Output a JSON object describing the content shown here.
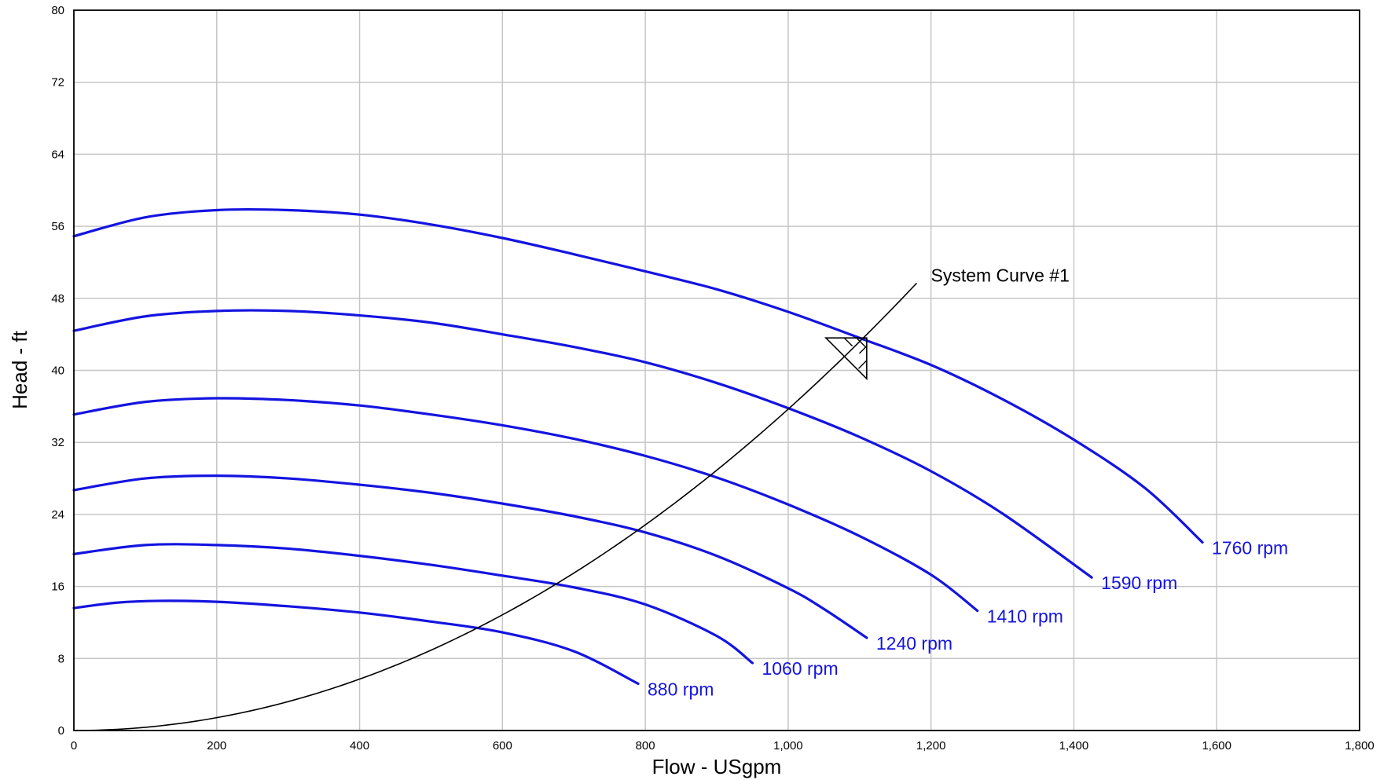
{
  "chart_data": {
    "type": "line",
    "title": "",
    "xlabel": "Flow - USgpm",
    "ylabel": "Head - ft",
    "xlim": [
      0,
      1800
    ],
    "ylim": [
      0,
      80
    ],
    "grid": true,
    "x_ticks": [
      {
        "value": 0,
        "label": "0"
      },
      {
        "value": 200,
        "label": "200"
      },
      {
        "value": 400,
        "label": "400"
      },
      {
        "value": 600,
        "label": "600"
      },
      {
        "value": 800,
        "label": "800"
      },
      {
        "value": 1000,
        "label": "1,000"
      },
      {
        "value": 1200,
        "label": "1,200"
      },
      {
        "value": 1400,
        "label": "1,400"
      },
      {
        "value": 1600,
        "label": "1,600"
      },
      {
        "value": 1800,
        "label": "1,800"
      }
    ],
    "y_ticks": [
      {
        "value": 0,
        "label": "0"
      },
      {
        "value": 8,
        "label": "8"
      },
      {
        "value": 16,
        "label": "16"
      },
      {
        "value": 24,
        "label": "24"
      },
      {
        "value": 32,
        "label": "32"
      },
      {
        "value": 40,
        "label": "40"
      },
      {
        "value": 48,
        "label": "48"
      },
      {
        "value": 56,
        "label": "56"
      },
      {
        "value": 64,
        "label": "64"
      },
      {
        "value": 72,
        "label": "72"
      },
      {
        "value": 80,
        "label": "80"
      }
    ],
    "series": [
      {
        "name": "1760 rpm",
        "color": "#1414e0",
        "points": [
          [
            0,
            54.9
          ],
          [
            100,
            57.0
          ],
          [
            200,
            57.8
          ],
          [
            300,
            57.8
          ],
          [
            400,
            57.3
          ],
          [
            500,
            56.2
          ],
          [
            600,
            54.7
          ],
          [
            700,
            52.9
          ],
          [
            800,
            51.0
          ],
          [
            900,
            49.0
          ],
          [
            1000,
            46.5
          ],
          [
            1100,
            43.6
          ],
          [
            1200,
            40.6
          ],
          [
            1300,
            36.8
          ],
          [
            1400,
            32.3
          ],
          [
            1500,
            26.9
          ],
          [
            1580,
            20.9
          ]
        ]
      },
      {
        "name": "1590 rpm",
        "color": "#1414e0",
        "points": [
          [
            0,
            44.4
          ],
          [
            100,
            46.0
          ],
          [
            200,
            46.6
          ],
          [
            300,
            46.6
          ],
          [
            400,
            46.1
          ],
          [
            500,
            45.3
          ],
          [
            600,
            44.0
          ],
          [
            700,
            42.6
          ],
          [
            800,
            40.9
          ],
          [
            900,
            38.6
          ],
          [
            1000,
            35.8
          ],
          [
            1100,
            32.6
          ],
          [
            1200,
            28.8
          ],
          [
            1300,
            24.1
          ],
          [
            1425,
            17.0
          ]
        ]
      },
      {
        "name": "1410 rpm",
        "color": "#1414e0",
        "points": [
          [
            0,
            35.1
          ],
          [
            100,
            36.5
          ],
          [
            200,
            36.9
          ],
          [
            300,
            36.7
          ],
          [
            400,
            36.1
          ],
          [
            500,
            35.1
          ],
          [
            600,
            33.9
          ],
          [
            700,
            32.4
          ],
          [
            800,
            30.5
          ],
          [
            900,
            28.1
          ],
          [
            1000,
            25.1
          ],
          [
            1100,
            21.6
          ],
          [
            1200,
            17.3
          ],
          [
            1265,
            13.3
          ]
        ]
      },
      {
        "name": "1240 rpm",
        "color": "#1414e0",
        "points": [
          [
            0,
            26.7
          ],
          [
            100,
            28.0
          ],
          [
            200,
            28.3
          ],
          [
            300,
            28.0
          ],
          [
            400,
            27.3
          ],
          [
            500,
            26.4
          ],
          [
            600,
            25.2
          ],
          [
            700,
            23.8
          ],
          [
            800,
            22.0
          ],
          [
            900,
            19.4
          ],
          [
            1000,
            15.8
          ],
          [
            1050,
            13.5
          ],
          [
            1110,
            10.3
          ]
        ]
      },
      {
        "name": "1060 rpm",
        "color": "#1414e0",
        "points": [
          [
            0,
            19.6
          ],
          [
            100,
            20.6
          ],
          [
            200,
            20.6
          ],
          [
            300,
            20.2
          ],
          [
            400,
            19.4
          ],
          [
            500,
            18.4
          ],
          [
            600,
            17.2
          ],
          [
            700,
            15.9
          ],
          [
            800,
            14.0
          ],
          [
            900,
            10.5
          ],
          [
            950,
            7.5
          ]
        ]
      },
      {
        "name": "880 rpm",
        "color": "#1414e0",
        "points": [
          [
            0,
            13.6
          ],
          [
            60,
            14.2
          ],
          [
            120,
            14.4
          ],
          [
            200,
            14.3
          ],
          [
            300,
            13.8
          ],
          [
            400,
            13.1
          ],
          [
            500,
            12.1
          ],
          [
            600,
            10.9
          ],
          [
            700,
            8.8
          ],
          [
            790,
            5.2
          ]
        ]
      }
    ],
    "system_curve": {
      "label": "System Curve #1",
      "color": "#000000",
      "coefficient": 3.569e-05,
      "x_max": 1180
    },
    "operating_point": {
      "x": 1110,
      "y": 43.6
    }
  }
}
